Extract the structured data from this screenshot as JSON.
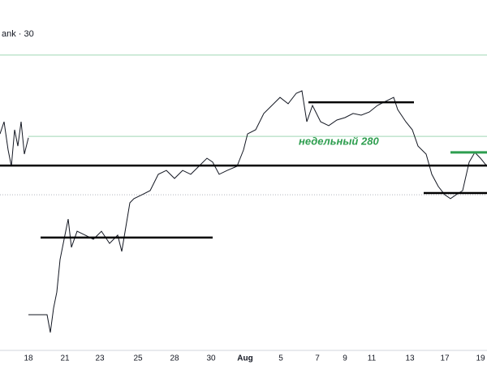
{
  "chart_data": {
    "type": "line",
    "title": "ank · 30",
    "annotation": "недельный 280",
    "xlim": [
      0,
      600
    ],
    "ylim": [
      200,
      330
    ],
    "xticks": [
      {
        "value": 35,
        "label": "18"
      },
      {
        "value": 80,
        "label": "21"
      },
      {
        "value": 123,
        "label": "23"
      },
      {
        "value": 170,
        "label": "25"
      },
      {
        "value": 215,
        "label": "28"
      },
      {
        "value": 260,
        "label": "30"
      },
      {
        "value": 302,
        "label": "Aug"
      },
      {
        "value": 346,
        "label": "5"
      },
      {
        "value": 391,
        "label": "7"
      },
      {
        "value": 425,
        "label": "9"
      },
      {
        "value": 458,
        "label": "11"
      },
      {
        "value": 505,
        "label": "13"
      },
      {
        "value": 548,
        "label": "17"
      },
      {
        "value": 592,
        "label": "19"
      }
    ],
    "series": [
      {
        "color": "#131722",
        "x": [
          0,
          5,
          10,
          14,
          18,
          22,
          26,
          30,
          35,
          35,
          35,
          58,
          62,
          66,
          70,
          74,
          80,
          84,
          88,
          95,
          105,
          115,
          125,
          135,
          145,
          150,
          155,
          160,
          165,
          175,
          185,
          195,
          205,
          215,
          225,
          235,
          245,
          255,
          262,
          270,
          280,
          292,
          300,
          305,
          315,
          325,
          335,
          345,
          355,
          365,
          372,
          378,
          385,
          395,
          405,
          415,
          425,
          435,
          445,
          455,
          465,
          475,
          485,
          490,
          500,
          508,
          515,
          525,
          532,
          540,
          548,
          555,
          562,
          570,
          578,
          585,
          592,
          600
        ],
        "values": [
          288.3,
          293.3,
          281.7,
          275,
          290,
          283.3,
          293.3,
          280,
          286.7,
          null,
          214,
          214,
          206.7,
          216.7,
          223.3,
          236.7,
          246.7,
          253.3,
          241.7,
          248.3,
          246.7,
          245,
          248.3,
          243.3,
          246.7,
          240,
          250,
          260,
          261.7,
          263.3,
          265,
          271.7,
          273.3,
          270,
          273.3,
          271.7,
          275,
          278.3,
          276.7,
          271.7,
          273.3,
          275,
          281.7,
          288.3,
          290,
          296.7,
          300,
          303.3,
          300.7,
          305,
          306,
          293.3,
          300,
          293.3,
          291.7,
          294,
          295,
          296.7,
          296,
          297.3,
          300,
          301.7,
          303.3,
          298.3,
          293.3,
          290,
          283.3,
          280,
          271.7,
          266.7,
          263.3,
          261.7,
          263.3,
          265,
          276.7,
          280.7,
          278.3,
          275
        ]
      }
    ],
    "levels": [
      {
        "value": 320.7,
        "x1": 0,
        "x2": 600,
        "color": "#9fd8b3"
      },
      {
        "value": 287.3,
        "x1": 35,
        "x2": 600,
        "color": "#9fd8b3"
      },
      {
        "value": 263.3,
        "x1": 0,
        "x2": 600,
        "color": "#b2b5be",
        "dash": true
      },
      {
        "value": 275.3,
        "x1": 0,
        "x2": 600,
        "color": "#000000",
        "width": 2.5
      },
      {
        "value": 245.7,
        "x1": 50,
        "x2": 262,
        "color": "#000000",
        "width": 2.5
      },
      {
        "value": 301.3,
        "x1": 380,
        "x2": 510,
        "color": "#000000",
        "width": 2.5
      },
      {
        "value": 264,
        "x1": 522,
        "x2": 600,
        "color": "#000000",
        "width": 2.5
      },
      {
        "value": 280.7,
        "x1": 555,
        "x2": 600,
        "color": "#2e9e4f",
        "width": 3
      }
    ]
  }
}
